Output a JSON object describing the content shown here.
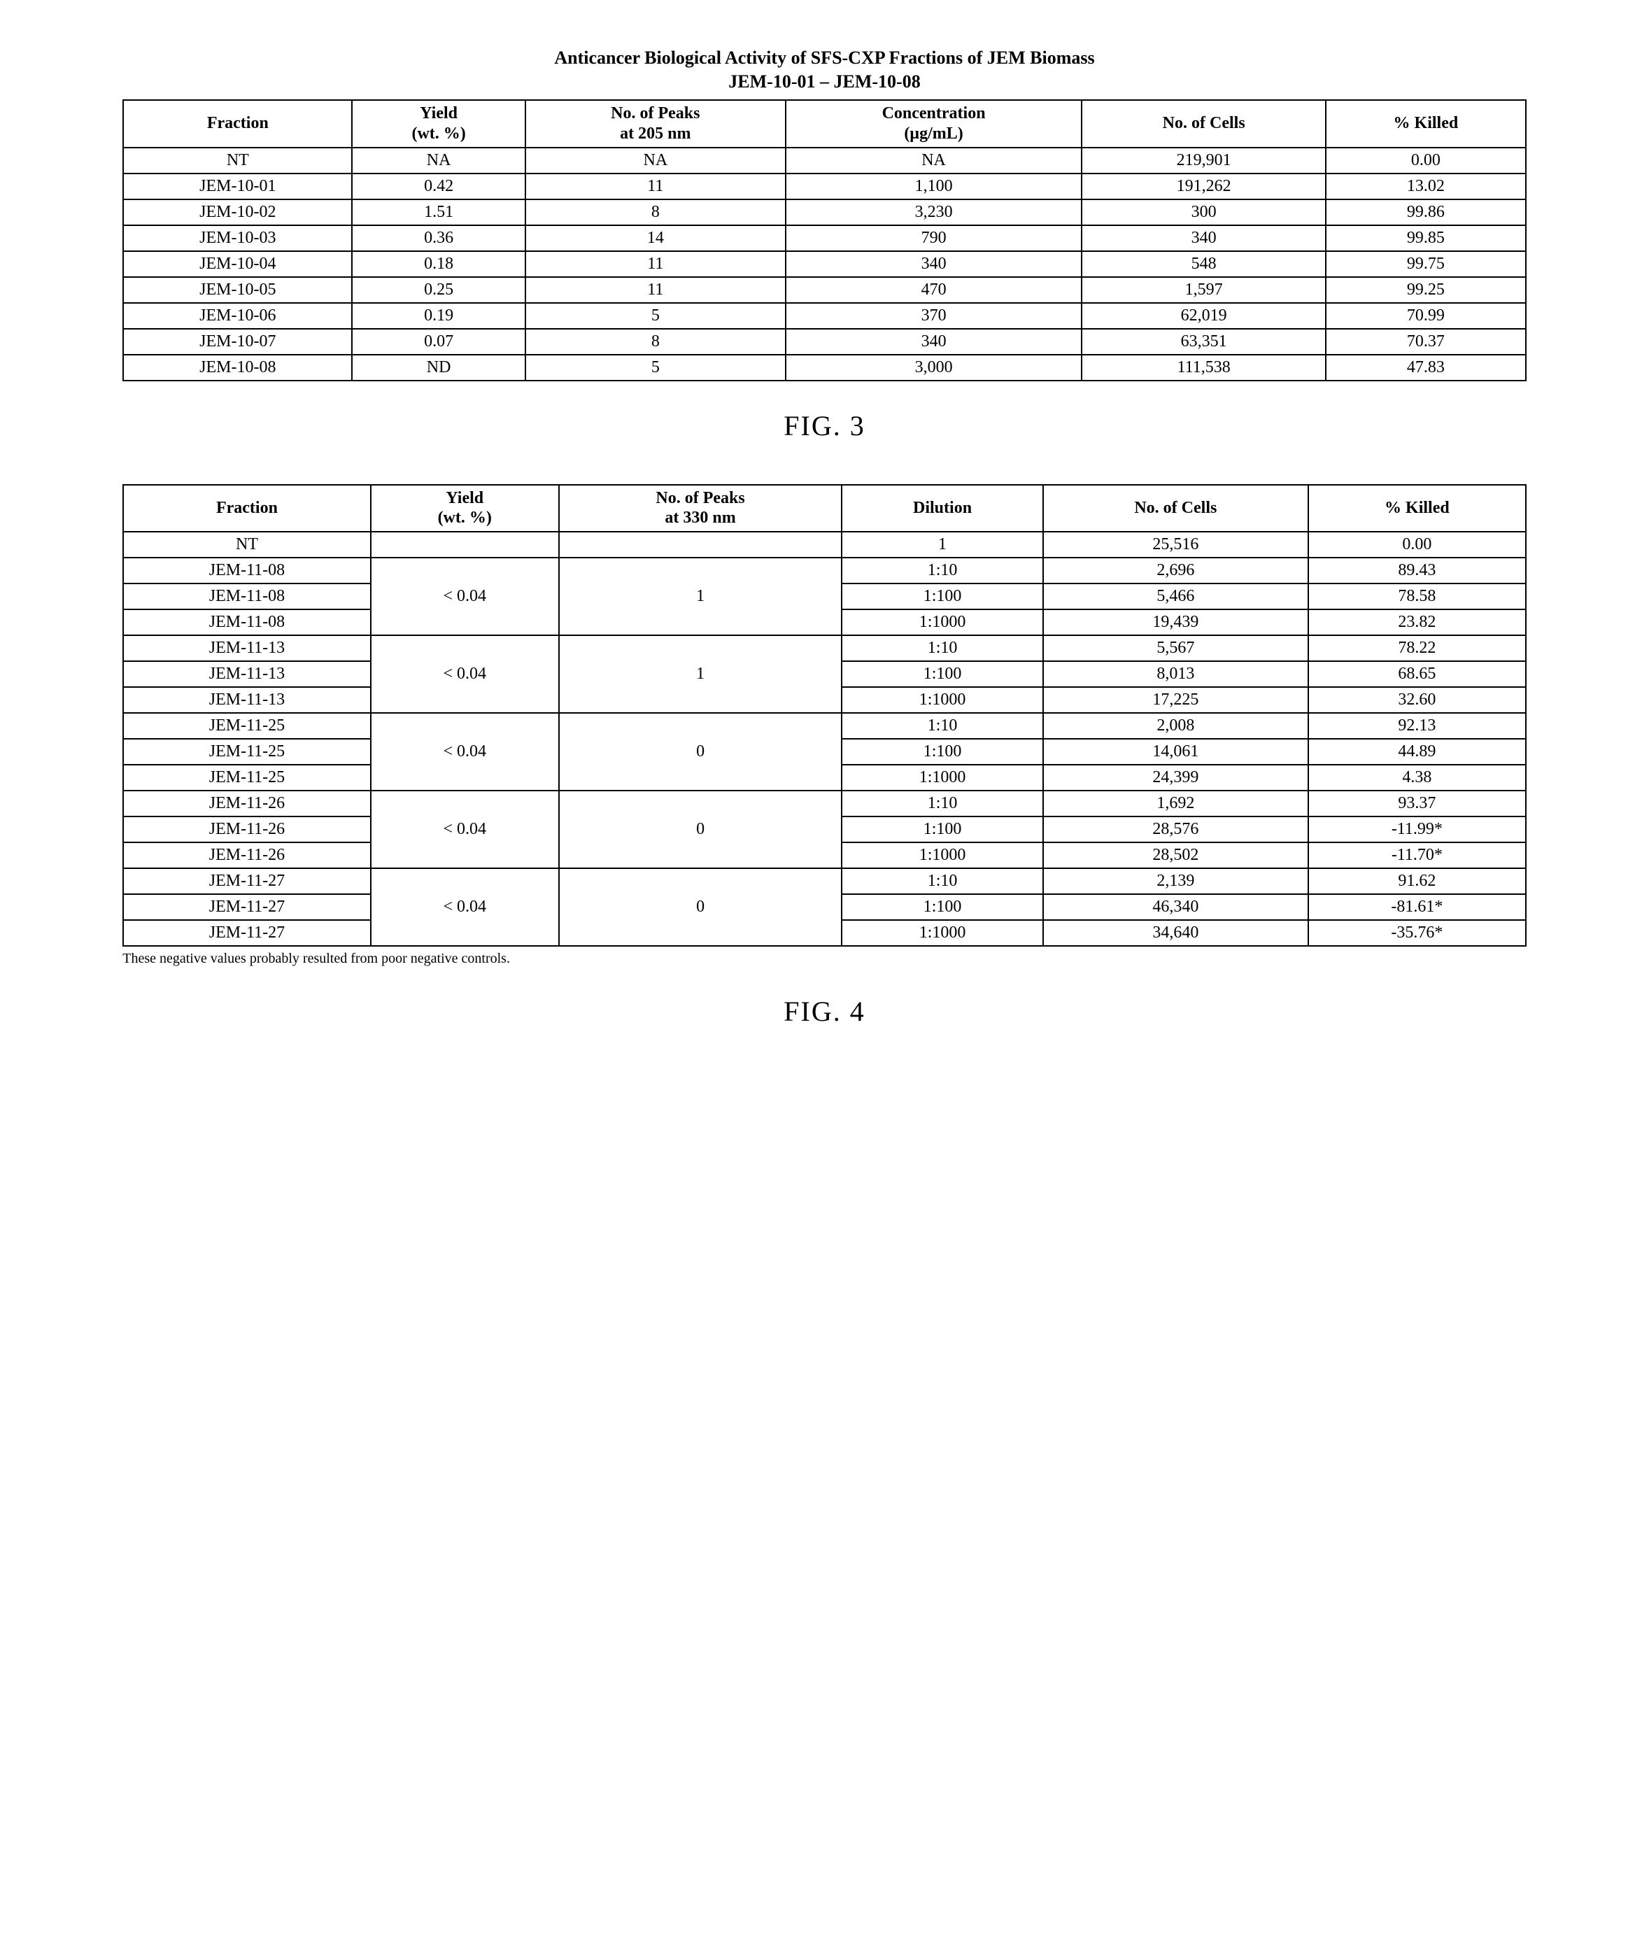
{
  "fig3": {
    "title": "Anticancer Biological Activity of SFS-CXP Fractions of JEM Biomass",
    "subtitle": "JEM-10-01 – JEM-10-08",
    "headers": {
      "c0": "Fraction",
      "c1a": "Yield",
      "c1b": "(wt. %)",
      "c2a": "No. of Peaks",
      "c2b": "at 205 nm",
      "c3a": "Concentration",
      "c3b": "(µg/mL)",
      "c4": "No. of Cells",
      "c5": "% Killed"
    },
    "rows": [
      {
        "c0": "NT",
        "c1": "NA",
        "c2": "NA",
        "c3": "NA",
        "c4": "219,901",
        "c5": "0.00"
      },
      {
        "c0": "JEM-10-01",
        "c1": "0.42",
        "c2": "11",
        "c3": "1,100",
        "c4": "191,262",
        "c5": "13.02"
      },
      {
        "c0": "JEM-10-02",
        "c1": "1.51",
        "c2": "8",
        "c3": "3,230",
        "c4": "300",
        "c5": "99.86"
      },
      {
        "c0": "JEM-10-03",
        "c1": "0.36",
        "c2": "14",
        "c3": "790",
        "c4": "340",
        "c5": "99.85"
      },
      {
        "c0": "JEM-10-04",
        "c1": "0.18",
        "c2": "11",
        "c3": "340",
        "c4": "548",
        "c5": "99.75"
      },
      {
        "c0": "JEM-10-05",
        "c1": "0.25",
        "c2": "11",
        "c3": "470",
        "c4": "1,597",
        "c5": "99.25"
      },
      {
        "c0": "JEM-10-06",
        "c1": "0.19",
        "c2": "5",
        "c3": "370",
        "c4": "62,019",
        "c5": "70.99"
      },
      {
        "c0": "JEM-10-07",
        "c1": "0.07",
        "c2": "8",
        "c3": "340",
        "c4": "63,351",
        "c5": "70.37"
      },
      {
        "c0": "JEM-10-08",
        "c1": "ND",
        "c2": "5",
        "c3": "3,000",
        "c4": "111,538",
        "c5": "47.83"
      }
    ],
    "label": "FIG.  3"
  },
  "fig4": {
    "headers": {
      "c0": "Fraction",
      "c1a": "Yield",
      "c1b": "(wt. %)",
      "c2a": "No. of Peaks",
      "c2b": "at 330 nm",
      "c3": "Dilution",
      "c4": "No. of Cells",
      "c5": "% Killed"
    },
    "nt": {
      "c0": "NT",
      "c3": "1",
      "c4": "25,516",
      "c5": "0.00"
    },
    "groups": [
      {
        "yield": "< 0.04",
        "peaks": "1",
        "rows": [
          {
            "c0": "JEM-11-08",
            "c3": "1:10",
            "c4": "2,696",
            "c5": "89.43"
          },
          {
            "c0": "JEM-11-08",
            "c3": "1:100",
            "c4": "5,466",
            "c5": "78.58"
          },
          {
            "c0": "JEM-11-08",
            "c3": "1:1000",
            "c4": "19,439",
            "c5": "23.82"
          }
        ]
      },
      {
        "yield": "< 0.04",
        "peaks": "1",
        "rows": [
          {
            "c0": "JEM-11-13",
            "c3": "1:10",
            "c4": "5,567",
            "c5": "78.22"
          },
          {
            "c0": "JEM-11-13",
            "c3": "1:100",
            "c4": "8,013",
            "c5": "68.65"
          },
          {
            "c0": "JEM-11-13",
            "c3": "1:1000",
            "c4": "17,225",
            "c5": "32.60"
          }
        ]
      },
      {
        "yield": "< 0.04",
        "peaks": "0",
        "rows": [
          {
            "c0": "JEM-11-25",
            "c3": "1:10",
            "c4": "2,008",
            "c5": "92.13"
          },
          {
            "c0": "JEM-11-25",
            "c3": "1:100",
            "c4": "14,061",
            "c5": "44.89"
          },
          {
            "c0": "JEM-11-25",
            "c3": "1:1000",
            "c4": "24,399",
            "c5": "4.38"
          }
        ]
      },
      {
        "yield": "< 0.04",
        "peaks": "0",
        "rows": [
          {
            "c0": "JEM-11-26",
            "c3": "1:10",
            "c4": "1,692",
            "c5": "93.37"
          },
          {
            "c0": "JEM-11-26",
            "c3": "1:100",
            "c4": "28,576",
            "c5": "-11.99*"
          },
          {
            "c0": "JEM-11-26",
            "c3": "1:1000",
            "c4": "28,502",
            "c5": "-11.70*"
          }
        ]
      },
      {
        "yield": "< 0.04",
        "peaks": "0",
        "rows": [
          {
            "c0": "JEM-11-27",
            "c3": "1:10",
            "c4": "2,139",
            "c5": "91.62"
          },
          {
            "c0": "JEM-11-27",
            "c3": "1:100",
            "c4": "46,340",
            "c5": "-81.61*"
          },
          {
            "c0": "JEM-11-27",
            "c3": "1:1000",
            "c4": "34,640",
            "c5": "-35.76*"
          }
        ]
      }
    ],
    "footnote": "These negative values probably resulted from poor negative controls.",
    "label": "FIG.  4"
  }
}
